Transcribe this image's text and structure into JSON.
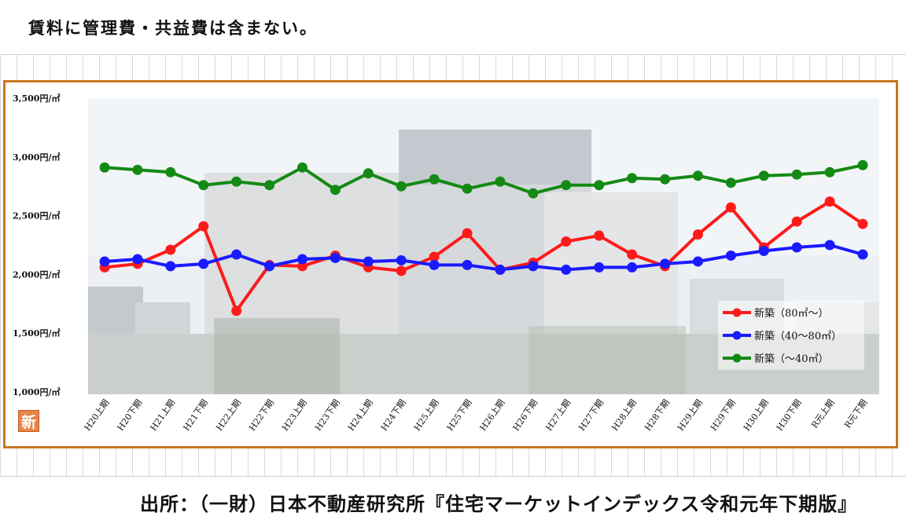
{
  "note": "賃料に管理費・共益費は含まない。",
  "source": "出所：（一財）日本不動産研究所『住宅マーケットインデックス令和元年下期版』",
  "badge": "新",
  "colors": {
    "frame": "#c8761e",
    "red": "#ff1a1a",
    "blue": "#1a1aff",
    "green": "#148a14",
    "badge": "#e6854a"
  },
  "chart_data": {
    "type": "line",
    "title": "",
    "xlabel": "",
    "ylabel": "",
    "ylim": [
      1000,
      3500
    ],
    "y_ticks": [
      "1,000円/㎡",
      "1,500円/㎡",
      "2,000円/㎡",
      "2,500円/㎡",
      "3,000円/㎡",
      "3,500円/㎡"
    ],
    "y_tick_values": [
      1000,
      1500,
      2000,
      2500,
      3000,
      3500
    ],
    "categories": [
      "H20上期",
      "H20下期",
      "H21上期",
      "H21下期",
      "H22上期",
      "H22下期",
      "H23上期",
      "H23下期",
      "H24上期",
      "H24下期",
      "H25上期",
      "H25下期",
      "H26上期",
      "H26下期",
      "H27上期",
      "H27下期",
      "H28上期",
      "H28下期",
      "H29上期",
      "H29下期",
      "H30上期",
      "H30下期",
      "R元上期",
      "R元下期"
    ],
    "legend_position": "bottom-right",
    "grid": false,
    "series": [
      {
        "name": "新築（80㎡～）",
        "color": "#ff1a1a",
        "values": [
          2060,
          2090,
          2210,
          2410,
          1690,
          2080,
          2070,
          2160,
          2060,
          2030,
          2150,
          2350,
          2040,
          2100,
          2280,
          2330,
          2170,
          2070,
          2340,
          2570,
          2230,
          2450,
          2620,
          2430
        ]
      },
      {
        "name": "新築（40～80㎡）",
        "color": "#1a1aff",
        "values": [
          2110,
          2130,
          2070,
          2090,
          2170,
          2070,
          2130,
          2140,
          2110,
          2120,
          2080,
          2080,
          2040,
          2070,
          2040,
          2060,
          2060,
          2090,
          2110,
          2160,
          2200,
          2230,
          2250,
          2170
        ]
      },
      {
        "name": "新築（～40㎡）",
        "color": "#148a14",
        "values": [
          2910,
          2890,
          2870,
          2760,
          2790,
          2760,
          2910,
          2720,
          2860,
          2750,
          2810,
          2730,
          2790,
          2690,
          2760,
          2760,
          2820,
          2810,
          2840,
          2780,
          2840,
          2850,
          2870,
          2930
        ]
      }
    ]
  }
}
